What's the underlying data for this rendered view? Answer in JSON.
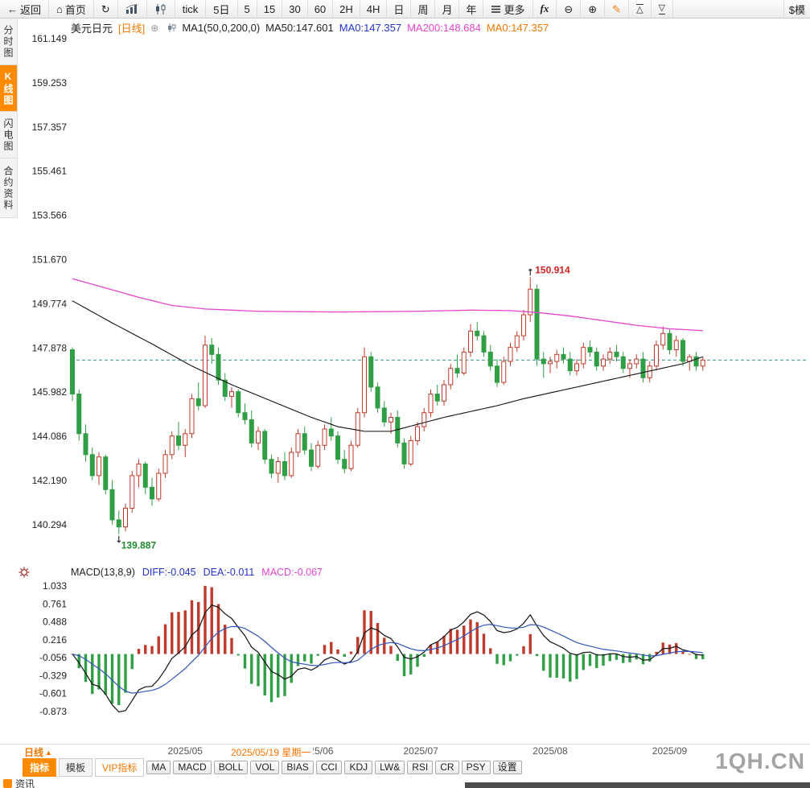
{
  "toolbar": {
    "back_label": "返回",
    "home_label": "首页",
    "tick_label": "tick",
    "five_day_label": "5日",
    "periods": [
      "5",
      "15",
      "30",
      "60",
      "2H",
      "4H",
      "日",
      "周",
      "月",
      "年"
    ],
    "more_label": "更多",
    "fx_label": "fx",
    "mode_label": "$模"
  },
  "sidebar": {
    "items": [
      {
        "label": "分时图",
        "selected": false
      },
      {
        "label": "K线图",
        "selected": true
      },
      {
        "label": "闪电图",
        "selected": false
      },
      {
        "label": "合约资料",
        "selected": false
      }
    ]
  },
  "price_header": {
    "symbol": "美元日元",
    "period": "[日线]",
    "ma_group": "MA1(50,0,200,0)",
    "ma50": "MA50:147.601",
    "ma0_blue": "MA0:147.357",
    "ma200": "MA200:148.684",
    "ma0_orange": "MA0:147.357"
  },
  "macd_header": {
    "name": "MACD(13,8,9)",
    "diff": "DIFF:-0.045",
    "dea": "DEA:-0.011",
    "macd": "MACD:-0.067"
  },
  "bottom": {
    "period_current": "日线",
    "tabs": [
      {
        "label": "指标",
        "active": true
      },
      {
        "label": "模板",
        "active": false
      },
      {
        "label": "VIP指标",
        "active": false
      }
    ],
    "indicators": [
      "MA",
      "MACD",
      "BOLL",
      "VOL",
      "BIAS",
      "CCI",
      "KDJ",
      "LW&",
      "RSI",
      "CR",
      "PSY"
    ],
    "settings": "设置",
    "watermark": "1QH.CN",
    "news": "资讯"
  },
  "colors": {
    "up": "#c03a2b",
    "down": "#2f9e44",
    "ma50": "#111111",
    "ma200": "#e645cf",
    "last_price_line": "#3d9090",
    "hist_pos": "#c03a2b",
    "hist_neg": "#2f9e44",
    "diff_line": "#111111",
    "dea_line": "#3355bb",
    "accent": "#ff8a00",
    "annotation_high": "#d22222",
    "annotation_low": "#1d8a2d"
  },
  "chart_data": {
    "type": "candlestick",
    "symbol": "美元日元",
    "period": "日线",
    "grid": false,
    "price_ylim": [
      140.294,
      161.149
    ],
    "macd_ylim": [
      -0.873,
      1.033
    ],
    "price_axis_ticks": [
      "161.149",
      "159.253",
      "157.357",
      "155.461",
      "153.566",
      "151.670",
      "149.774",
      "147.878",
      "145.982",
      "144.086",
      "142.190",
      "140.294"
    ],
    "macd_axis_ticks": [
      "1.033",
      "0.761",
      "0.488",
      "0.216",
      "-0.056",
      "-0.329",
      "-0.601",
      "-0.873"
    ],
    "last_price": 147.357,
    "annotations": {
      "high": {
        "label": "150.914",
        "index": 69
      },
      "low": {
        "label": "139.887",
        "index": 7
      }
    },
    "x_labels": [
      {
        "label": "2025/05",
        "index": 17
      },
      {
        "label": "2025/06",
        "index": 36.7
      },
      {
        "label": "2025/07",
        "index": 52.5
      },
      {
        "label": "2025/08",
        "index": 72
      },
      {
        "label": "2025/09",
        "index": 90
      }
    ],
    "selected_date": {
      "label": "2025/05/19 星期一",
      "index": 29.9
    },
    "macd_params": {
      "fast": 8,
      "slow": 13,
      "signal": 9
    },
    "candles": [
      [
        147.8,
        147.9,
        145.6,
        145.9
      ],
      [
        145.9,
        146.1,
        143.9,
        144.2
      ],
      [
        144.2,
        144.6,
        143.0,
        143.3
      ],
      [
        143.3,
        143.6,
        142.2,
        142.4
      ],
      [
        142.4,
        143.4,
        142.0,
        143.2
      ],
      [
        143.2,
        143.3,
        141.6,
        141.8
      ],
      [
        141.8,
        142.2,
        140.3,
        140.5
      ],
      [
        140.5,
        140.9,
        139.887,
        140.2
      ],
      [
        140.2,
        141.2,
        140.0,
        141.0
      ],
      [
        141.0,
        142.6,
        140.8,
        142.4
      ],
      [
        142.4,
        143.1,
        141.9,
        142.9
      ],
      [
        142.9,
        143.0,
        141.6,
        141.9
      ],
      [
        141.9,
        142.3,
        141.1,
        141.4
      ],
      [
        141.4,
        142.7,
        141.3,
        142.5
      ],
      [
        142.5,
        143.5,
        142.3,
        143.3
      ],
      [
        143.3,
        144.3,
        143.1,
        144.1
      ],
      [
        144.1,
        144.7,
        143.5,
        143.7
      ],
      [
        143.7,
        144.4,
        143.2,
        144.2
      ],
      [
        144.2,
        145.9,
        144.0,
        145.7
      ],
      [
        145.7,
        146.4,
        145.2,
        145.4
      ],
      [
        145.4,
        148.4,
        145.3,
        148.0
      ],
      [
        148.0,
        148.3,
        147.2,
        147.6
      ],
      [
        147.6,
        147.9,
        146.3,
        146.5
      ],
      [
        146.5,
        146.8,
        145.6,
        145.8
      ],
      [
        145.8,
        146.2,
        145.3,
        146.0
      ],
      [
        146.0,
        146.1,
        144.9,
        145.1
      ],
      [
        145.1,
        145.5,
        144.6,
        144.8
      ],
      [
        144.8,
        145.2,
        143.6,
        143.8
      ],
      [
        143.8,
        144.5,
        143.5,
        144.3
      ],
      [
        144.3,
        144.4,
        142.9,
        143.1
      ],
      [
        143.1,
        143.3,
        142.3,
        142.5
      ],
      [
        142.5,
        143.2,
        142.1,
        143.0
      ],
      [
        143.0,
        143.4,
        142.2,
        142.4
      ],
      [
        142.4,
        143.6,
        142.3,
        143.4
      ],
      [
        143.4,
        144.4,
        143.2,
        144.2
      ],
      [
        144.2,
        144.5,
        143.3,
        143.5
      ],
      [
        143.5,
        143.8,
        142.6,
        142.8
      ],
      [
        142.8,
        143.9,
        142.7,
        143.7
      ],
      [
        143.7,
        144.6,
        143.5,
        144.4
      ],
      [
        144.4,
        144.9,
        143.9,
        144.1
      ],
      [
        144.1,
        144.3,
        142.9,
        143.1
      ],
      [
        143.1,
        143.5,
        142.5,
        142.7
      ],
      [
        142.7,
        143.9,
        142.6,
        143.7
      ],
      [
        143.7,
        145.3,
        143.6,
        145.1
      ],
      [
        145.1,
        147.9,
        144.9,
        147.5
      ],
      [
        147.5,
        147.7,
        146.0,
        146.2
      ],
      [
        146.2,
        146.4,
        145.1,
        145.3
      ],
      [
        145.3,
        145.6,
        144.5,
        144.7
      ],
      [
        144.7,
        145.1,
        144.2,
        144.9
      ],
      [
        144.9,
        145.2,
        143.6,
        143.8
      ],
      [
        143.8,
        144.0,
        142.7,
        142.9
      ],
      [
        142.9,
        144.1,
        142.8,
        143.9
      ],
      [
        143.9,
        144.7,
        143.7,
        144.5
      ],
      [
        144.5,
        145.3,
        144.3,
        145.1
      ],
      [
        145.1,
        146.1,
        144.9,
        145.9
      ],
      [
        145.9,
        146.3,
        145.4,
        145.6
      ],
      [
        145.6,
        146.5,
        145.4,
        146.3
      ],
      [
        146.3,
        147.2,
        146.1,
        147.0
      ],
      [
        147.0,
        147.6,
        146.6,
        146.8
      ],
      [
        146.8,
        147.9,
        146.7,
        147.7
      ],
      [
        147.7,
        148.9,
        147.5,
        148.6
      ],
      [
        148.6,
        149.0,
        148.2,
        148.4
      ],
      [
        148.4,
        148.6,
        147.5,
        147.7
      ],
      [
        147.7,
        148.0,
        146.9,
        147.1
      ],
      [
        147.1,
        147.4,
        146.2,
        146.4
      ],
      [
        146.4,
        147.5,
        146.3,
        147.3
      ],
      [
        147.3,
        148.1,
        147.1,
        147.9
      ],
      [
        147.9,
        148.6,
        147.7,
        148.4
      ],
      [
        148.4,
        149.5,
        148.2,
        149.3
      ],
      [
        149.3,
        150.914,
        149.0,
        150.4
      ],
      [
        150.4,
        150.6,
        147.1,
        147.4
      ],
      [
        147.4,
        147.7,
        146.6,
        147.2
      ],
      [
        147.2,
        147.5,
        146.8,
        147.3
      ],
      [
        147.3,
        147.8,
        147.0,
        147.6
      ],
      [
        147.6,
        147.9,
        147.2,
        147.4
      ],
      [
        147.4,
        147.7,
        146.7,
        146.9
      ],
      [
        146.9,
        147.4,
        146.7,
        147.2
      ],
      [
        147.2,
        148.1,
        147.0,
        147.9
      ],
      [
        147.9,
        148.2,
        147.5,
        147.7
      ],
      [
        147.7,
        147.9,
        146.9,
        147.1
      ],
      [
        147.1,
        147.6,
        146.9,
        147.4
      ],
      [
        147.4,
        147.9,
        147.2,
        147.7
      ],
      [
        147.7,
        148.0,
        147.3,
        147.5
      ],
      [
        147.5,
        147.7,
        146.8,
        147.0
      ],
      [
        147.0,
        147.4,
        146.6,
        147.2
      ],
      [
        147.2,
        147.6,
        147.0,
        147.4
      ],
      [
        147.4,
        147.7,
        146.4,
        146.6
      ],
      [
        146.6,
        147.3,
        146.4,
        147.1
      ],
      [
        147.1,
        148.2,
        146.9,
        148.0
      ],
      [
        148.0,
        148.8,
        147.8,
        148.5
      ],
      [
        148.5,
        148.7,
        147.6,
        147.8
      ],
      [
        147.8,
        148.4,
        147.5,
        148.2
      ],
      [
        148.2,
        148.3,
        147.1,
        147.3
      ],
      [
        147.3,
        147.6,
        146.9,
        147.5
      ],
      [
        147.5,
        147.7,
        146.9,
        147.1
      ],
      [
        147.1,
        147.5,
        146.9,
        147.357
      ]
    ],
    "ma50_points": [
      [
        0,
        149.9
      ],
      [
        6,
        148.95
      ],
      [
        12,
        148.05
      ],
      [
        18,
        147.1
      ],
      [
        24,
        146.3
      ],
      [
        30,
        145.6
      ],
      [
        36,
        144.9
      ],
      [
        40,
        144.5
      ],
      [
        44,
        144.3
      ],
      [
        48,
        144.3
      ],
      [
        52,
        144.6
      ],
      [
        56,
        144.9
      ],
      [
        60,
        145.15
      ],
      [
        64,
        145.4
      ],
      [
        68,
        145.7
      ],
      [
        72,
        145.95
      ],
      [
        76,
        146.2
      ],
      [
        80,
        146.45
      ],
      [
        84,
        146.7
      ],
      [
        88,
        146.95
      ],
      [
        92,
        147.2
      ],
      [
        95,
        147.5
      ]
    ],
    "ma200_points": [
      [
        0,
        150.85
      ],
      [
        5,
        150.45
      ],
      [
        10,
        150.05
      ],
      [
        15,
        149.7
      ],
      [
        20,
        149.55
      ],
      [
        28,
        149.45
      ],
      [
        40,
        149.42
      ],
      [
        52,
        149.45
      ],
      [
        60,
        149.5
      ],
      [
        66,
        149.48
      ],
      [
        70,
        149.4
      ],
      [
        75,
        149.25
      ],
      [
        80,
        149.05
      ],
      [
        85,
        148.85
      ],
      [
        90,
        148.7
      ],
      [
        95,
        148.62
      ]
    ]
  }
}
